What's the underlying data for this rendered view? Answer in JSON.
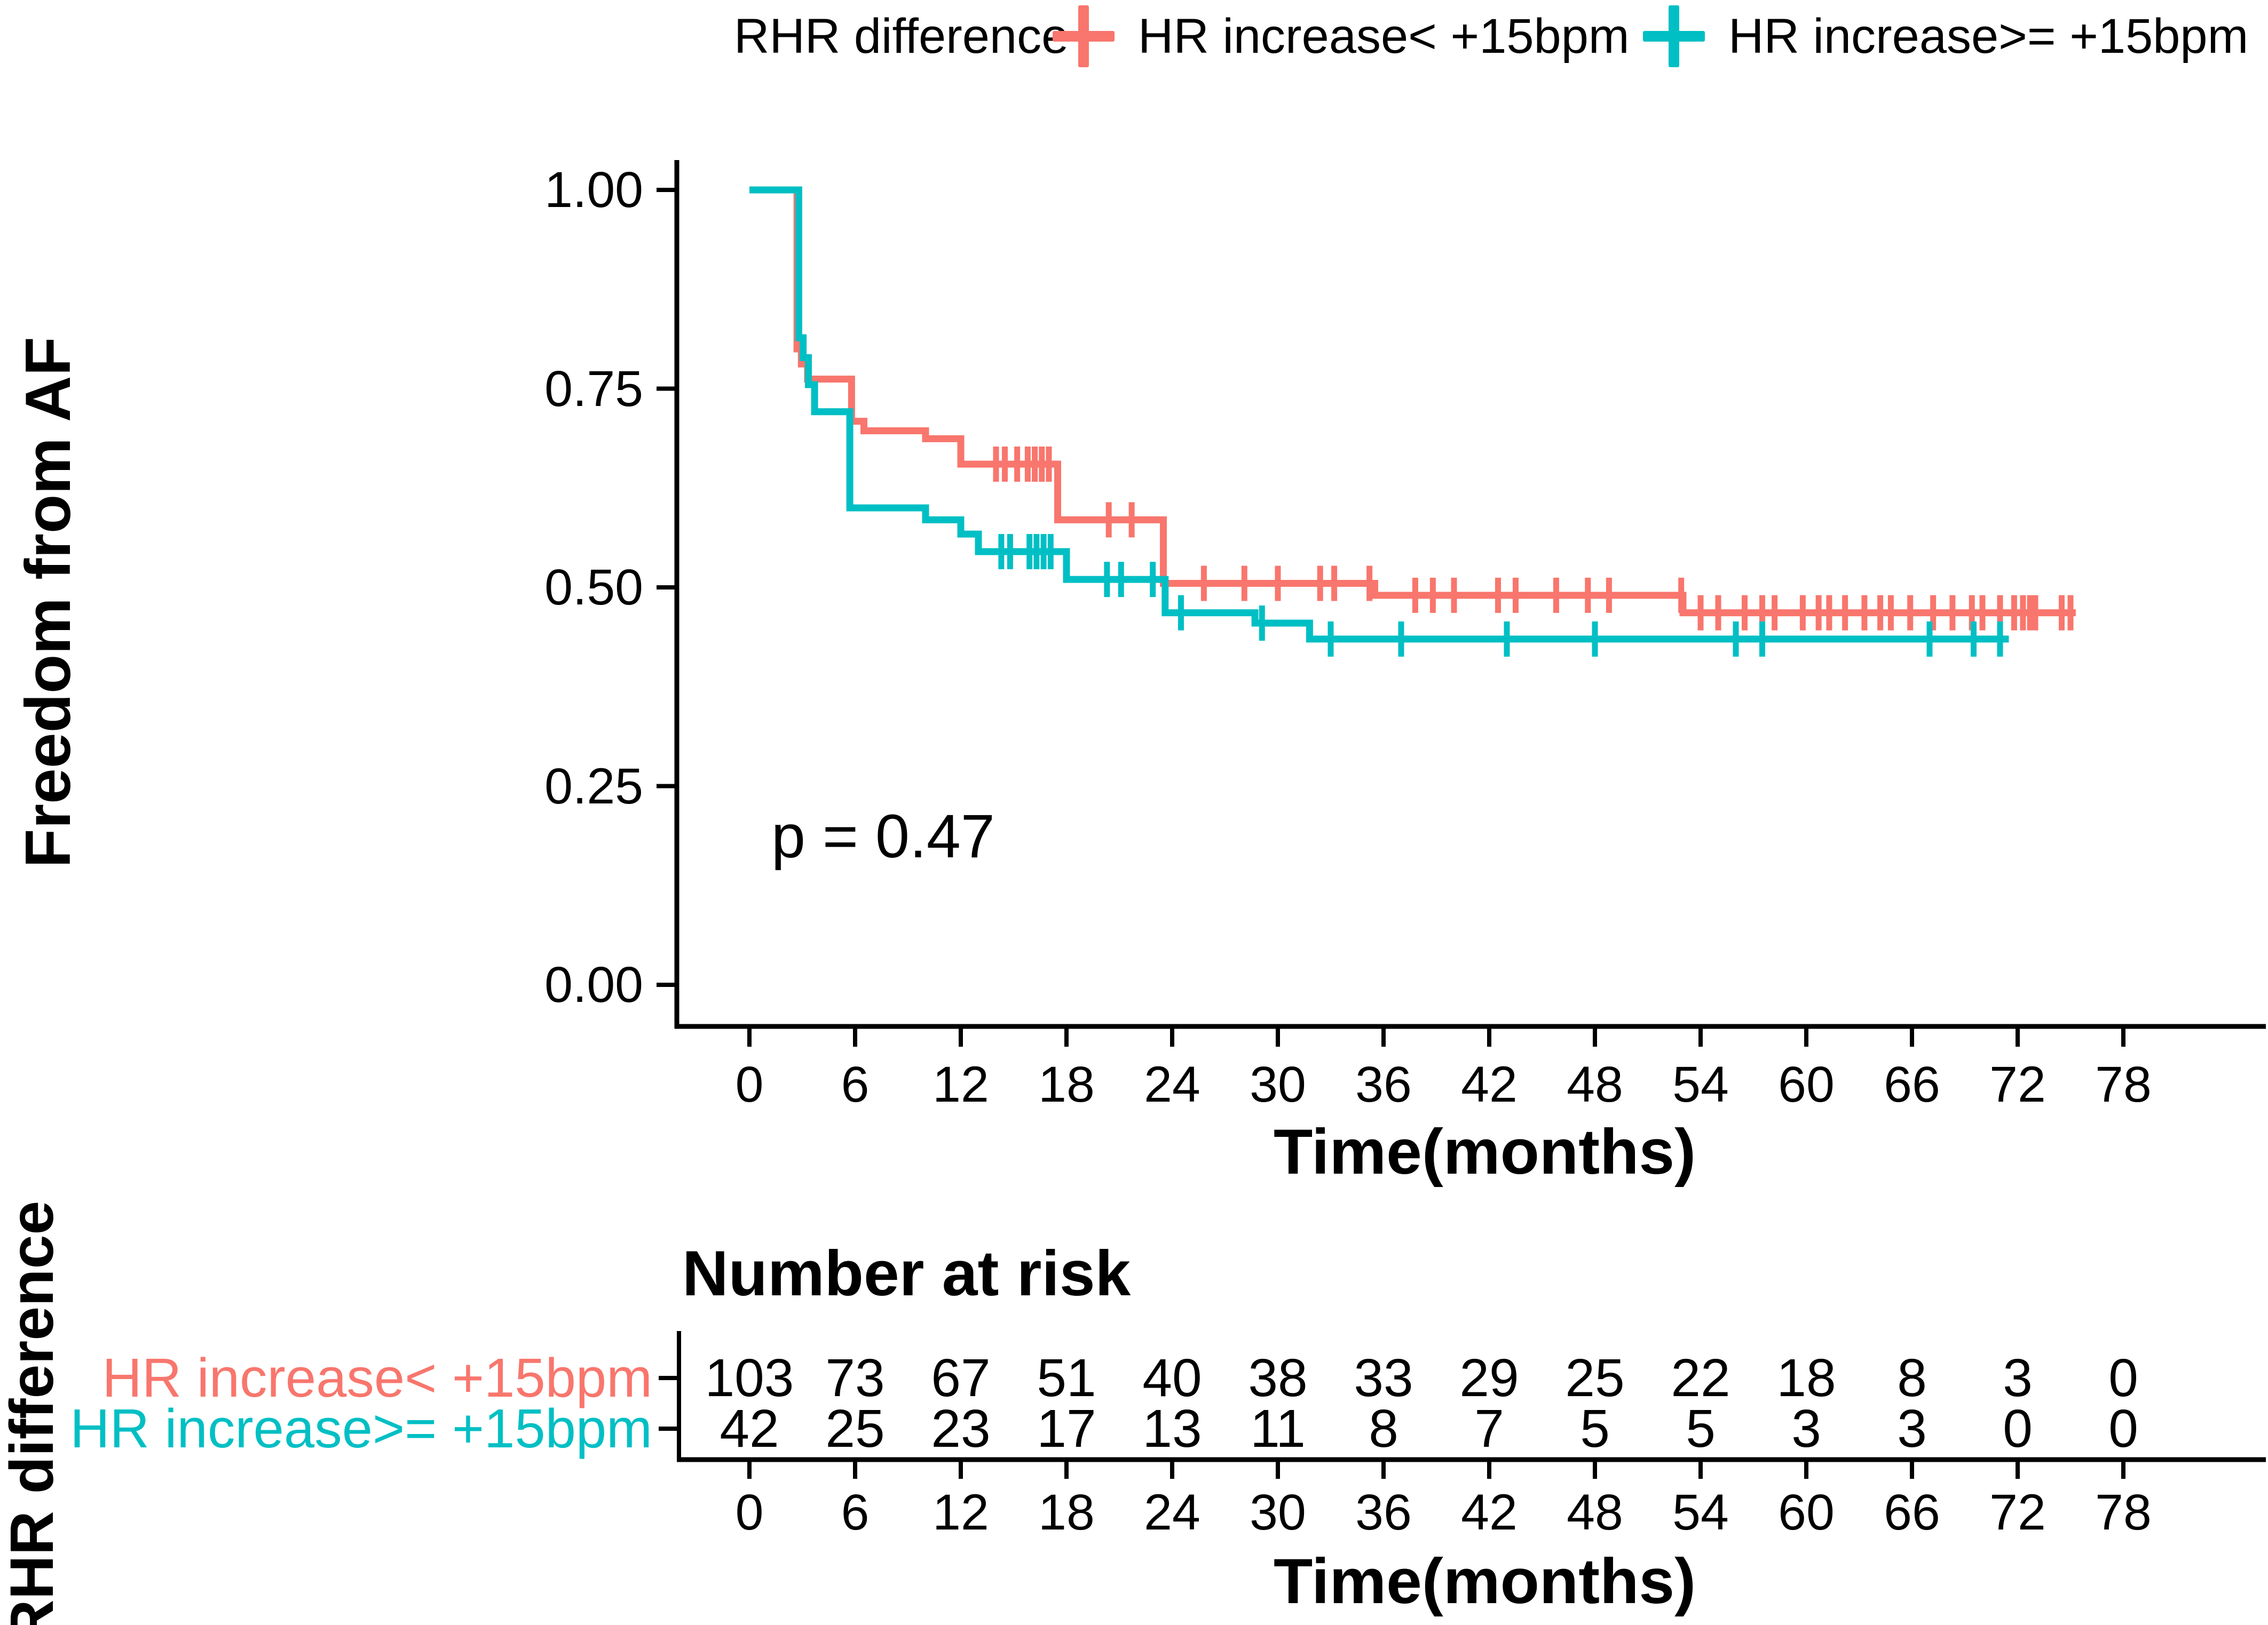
{
  "legend": {
    "title": "RHR difference",
    "items": [
      {
        "label": "HR increase< +15bpm",
        "color": "#F8766D"
      },
      {
        "label": "HR increase>= +15bpm",
        "color": "#00BFC4"
      }
    ]
  },
  "chart_data": {
    "type": "line",
    "subtype": "kaplan-meier-step",
    "title": "",
    "xlabel": "Time(months)",
    "ylabel": "Freedom from AF",
    "annotation": "p = 0.47",
    "xlim": [
      0,
      78
    ],
    "ylim": [
      0.0,
      1.0
    ],
    "grid": "off",
    "legend_position": "top",
    "x_ticks": [
      0,
      6,
      12,
      18,
      24,
      30,
      36,
      42,
      48,
      54,
      60,
      66,
      72,
      78
    ],
    "y_ticks": [
      "1.00",
      "0.75",
      "0.50",
      "0.25",
      "0.00"
    ],
    "y_tick_values": [
      1.0,
      0.75,
      0.5,
      0.25,
      0.0
    ],
    "series": [
      {
        "name": "HR increase< +15bpm",
        "color": "#F8766D",
        "steps": [
          [
            0,
            1.0
          ],
          [
            2.7,
            0.8
          ],
          [
            2.95,
            0.781
          ],
          [
            3.3,
            0.762
          ],
          [
            5.8,
            0.709
          ],
          [
            6.5,
            0.697
          ],
          [
            10,
            0.687
          ],
          [
            12,
            0.655
          ],
          [
            17.5,
            0.585
          ],
          [
            23.5,
            0.505
          ],
          [
            35.5,
            0.49
          ],
          [
            53,
            0.468
          ]
        ],
        "end_time": 75.3,
        "censor_times": [
          14,
          14.5,
          15.2,
          15.8,
          16.2,
          16.6,
          17,
          20.4,
          21.7,
          25.8,
          28.1,
          30,
          32.4,
          33.2,
          35.2,
          37.8,
          38.8,
          40,
          42.5,
          43.5,
          45.8,
          47.6,
          48.8,
          52.9,
          54,
          55,
          56.5,
          57.5,
          58.2,
          59.8,
          60.7,
          61.3,
          62.2,
          63.3,
          64.2,
          64.8,
          65.9,
          67.2,
          68.3,
          69.4,
          70,
          71,
          71.8,
          72.3,
          72.7,
          73,
          74.5,
          75
        ]
      },
      {
        "name": "HR increase>= +15bpm",
        "color": "#00BFC4",
        "steps": [
          [
            0,
            1.0
          ],
          [
            2.8,
            0.814
          ],
          [
            3.05,
            0.789
          ],
          [
            3.35,
            0.755
          ],
          [
            3.7,
            0.721
          ],
          [
            5.7,
            0.6
          ],
          [
            10,
            0.585
          ],
          [
            12,
            0.567
          ],
          [
            13,
            0.545
          ],
          [
            18,
            0.51
          ],
          [
            23.6,
            0.468
          ],
          [
            28.7,
            0.455
          ],
          [
            31.8,
            0.435
          ]
        ],
        "end_time": 71.5,
        "censor_times": [
          14.3,
          14.8,
          15.9,
          16.3,
          16.7,
          17.1,
          20.3,
          21.1,
          22.9,
          24.5,
          29.1,
          33,
          37,
          43,
          48,
          56,
          57.5,
          67,
          69.5,
          71
        ]
      }
    ]
  },
  "risk_table": {
    "title": "Number at risk",
    "axis_label": "RHR difference",
    "xlabel": "Time(months)",
    "columns": [
      0,
      6,
      12,
      18,
      24,
      30,
      36,
      42,
      48,
      54,
      60,
      66,
      72,
      78
    ],
    "rows": [
      {
        "label": "HR increase< +15bpm",
        "color": "#F8766D",
        "values": [
          103,
          73,
          67,
          51,
          40,
          38,
          33,
          29,
          25,
          22,
          18,
          8,
          3,
          0
        ]
      },
      {
        "label": "HR increase>= +15bpm",
        "color": "#00BFC4",
        "values": [
          42,
          25,
          23,
          17,
          13,
          11,
          8,
          7,
          5,
          5,
          3,
          3,
          0,
          0
        ]
      }
    ]
  }
}
